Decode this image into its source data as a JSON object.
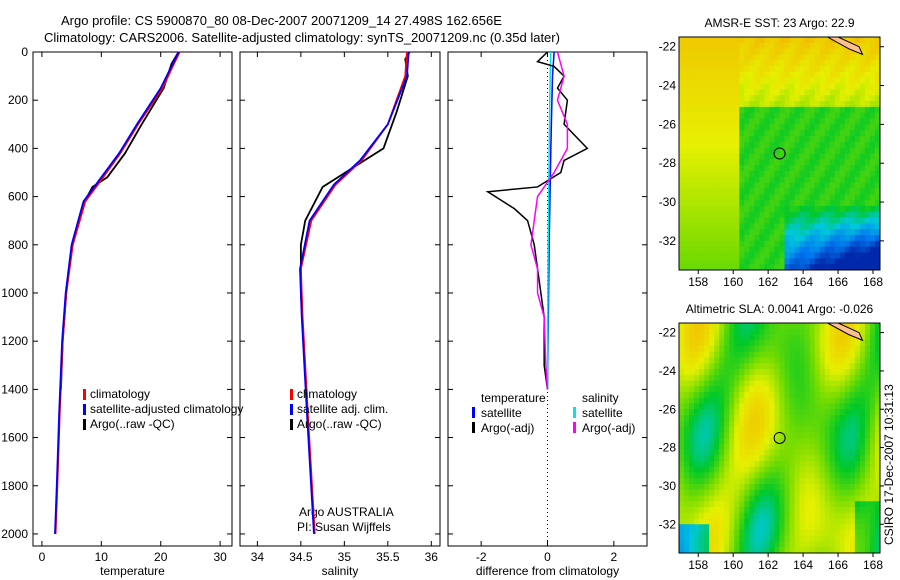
{
  "title1": "Argo profile: CS 5900870_80 08-Dec-2007 20071209_14 27.498S 162.656E",
  "title2": "Climatology: CARS2006. Satellite-adjusted climatology: synTS_20071209.nc (0.35d later)",
  "side_label": "CSIRO 17-Dec-2007 10:31:13",
  "credit": [
    "Argo AUSTRALIA",
    "PI: Susan Wijffels"
  ],
  "colors": {
    "clim": "#ff0000",
    "sat": "#0000ff",
    "argo": "#000000",
    "sal_sat": "#00e5e5",
    "sal_argo": "#ff00ff"
  },
  "chart_data": [
    {
      "type": "line",
      "xlabel": "temperature",
      "xlim": [
        -1.5,
        32
      ],
      "xticks": [
        0,
        10,
        20,
        30
      ],
      "ylim": [
        0,
        2050
      ],
      "yticks": [
        0,
        200,
        400,
        600,
        800,
        1000,
        1200,
        1400,
        1600,
        1800,
        2000
      ],
      "legend": [
        "climatology",
        "satellite-adjusted climatology",
        "Argo(..raw -QC)"
      ],
      "series": [
        {
          "name": "climatology",
          "depth": [
            0,
            50,
            150,
            300,
            420,
            520,
            620,
            800,
            1000,
            1200,
            1500,
            1800,
            2000
          ],
          "values": [
            23.2,
            22.2,
            20.3,
            16.2,
            13.2,
            10.3,
            7.3,
            5.2,
            4.1,
            3.5,
            3.0,
            2.6,
            2.3
          ]
        },
        {
          "name": "satellite-adjusted climatology",
          "depth": [
            0,
            50,
            150,
            300,
            420,
            520,
            620,
            800,
            1000,
            1200,
            1500,
            1800,
            2000
          ],
          "values": [
            23.0,
            22.0,
            20.0,
            16.0,
            13.0,
            10.0,
            7.0,
            5.0,
            4.0,
            3.4,
            2.9,
            2.5,
            2.2
          ]
        },
        {
          "name": "Argo(..raw -QC)",
          "depth": [
            0,
            50,
            150,
            300,
            420,
            520,
            560,
            620,
            800,
            1000,
            1200,
            1400
          ],
          "values": [
            23.0,
            21.8,
            20.5,
            16.8,
            14.0,
            11.0,
            8.5,
            7.2,
            5.1,
            4.1,
            3.5,
            3.2
          ]
        }
      ]
    },
    {
      "type": "line",
      "xlabel": "salinity",
      "xlim": [
        33.8,
        36.1
      ],
      "xticks": [
        34,
        34.5,
        35,
        35.5,
        36
      ],
      "ylim": [
        0,
        2050
      ],
      "legend": [
        "climatology",
        "satellite adj. clim.",
        "Argo(..raw -QC)"
      ],
      "series": [
        {
          "name": "climatology",
          "depth": [
            0,
            100,
            300,
            450,
            550,
            700,
            900,
            1100,
            1500,
            2000
          ],
          "values": [
            35.72,
            35.7,
            35.5,
            35.2,
            34.9,
            34.62,
            34.5,
            34.52,
            34.58,
            34.66
          ]
        },
        {
          "name": "satellite adj. clim.",
          "depth": [
            0,
            100,
            300,
            450,
            550,
            700,
            900,
            1100,
            1500,
            2000
          ],
          "values": [
            35.74,
            35.72,
            35.5,
            35.18,
            34.88,
            34.6,
            34.49,
            34.51,
            34.57,
            34.65
          ]
        },
        {
          "name": "Argo(..raw -QC)",
          "depth": [
            0,
            30,
            100,
            250,
            400,
            480,
            560,
            700,
            800,
            1000,
            1200,
            1400
          ],
          "values": [
            35.75,
            35.7,
            35.73,
            35.6,
            35.45,
            35.1,
            34.75,
            34.55,
            34.5,
            34.5,
            34.53,
            34.56
          ]
        }
      ]
    },
    {
      "type": "line",
      "xlabel": "difference from climatology",
      "xlim": [
        -3.0,
        3.0
      ],
      "xticks": [
        -2,
        0,
        2
      ],
      "ylim": [
        0,
        2050
      ],
      "legend_headers": [
        "temperature",
        "salinity"
      ],
      "legend": [
        "satellite",
        "Argo(-adj)",
        "satellite",
        "Argo(-adj)"
      ],
      "series": [
        {
          "name": "temperature satellite",
          "depth": [
            0,
            100,
            400,
            800,
            1400
          ],
          "values": [
            0.2,
            0.15,
            0.1,
            0.05,
            0
          ]
        },
        {
          "name": "salinity satellite",
          "depth": [
            0,
            100,
            400,
            800,
            1400
          ],
          "values": [
            0.1,
            0.08,
            0.05,
            0.02,
            0
          ]
        },
        {
          "name": "temperature Argo(-adj)",
          "depth": [
            0,
            40,
            60,
            100,
            150,
            200,
            300,
            400,
            450,
            500,
            560,
            580,
            650,
            700,
            800,
            900,
            1000,
            1100,
            1300,
            1400
          ],
          "values": [
            0,
            -0.3,
            0.2,
            0.5,
            0.3,
            0.6,
            0.5,
            1.2,
            0.5,
            0.4,
            -0.3,
            -1.8,
            -1.0,
            -0.6,
            -0.4,
            -0.3,
            -0.2,
            -0.1,
            -0.1,
            0
          ]
        },
        {
          "name": "salinity Argo(-adj)",
          "depth": [
            0,
            50,
            100,
            200,
            300,
            400,
            500,
            560,
            600,
            700,
            800,
            900,
            1000,
            1100,
            1300,
            1400
          ],
          "values": [
            0.3,
            0.4,
            0.5,
            0.3,
            0.6,
            0.6,
            0.2,
            -0.1,
            -0.3,
            -0.4,
            -0.5,
            -0.3,
            -0.3,
            -0.1,
            -0.05,
            0
          ]
        }
      ]
    },
    {
      "type": "heatmap",
      "title": "AMSR-E SST: 23 Argo: 22.9",
      "xticks": [
        158,
        160,
        162,
        164,
        166,
        168
      ],
      "yticks": [
        -22,
        -24,
        -26,
        -28,
        -30,
        -32
      ],
      "xlim": [
        156.9,
        168.4
      ],
      "ylim": [
        -33.5,
        -21.5
      ],
      "marker": [
        162.656,
        -27.498
      ]
    },
    {
      "type": "heatmap",
      "title": "Altimetric SLA: 0.0041 Argo: -0.026",
      "xticks": [
        158,
        160,
        162,
        164,
        166,
        168
      ],
      "yticks": [
        -22,
        -24,
        -26,
        -28,
        -30,
        -32
      ],
      "xlim": [
        156.9,
        168.4
      ],
      "ylim": [
        -33.5,
        -21.5
      ],
      "marker": [
        162.656,
        -27.498
      ]
    }
  ]
}
